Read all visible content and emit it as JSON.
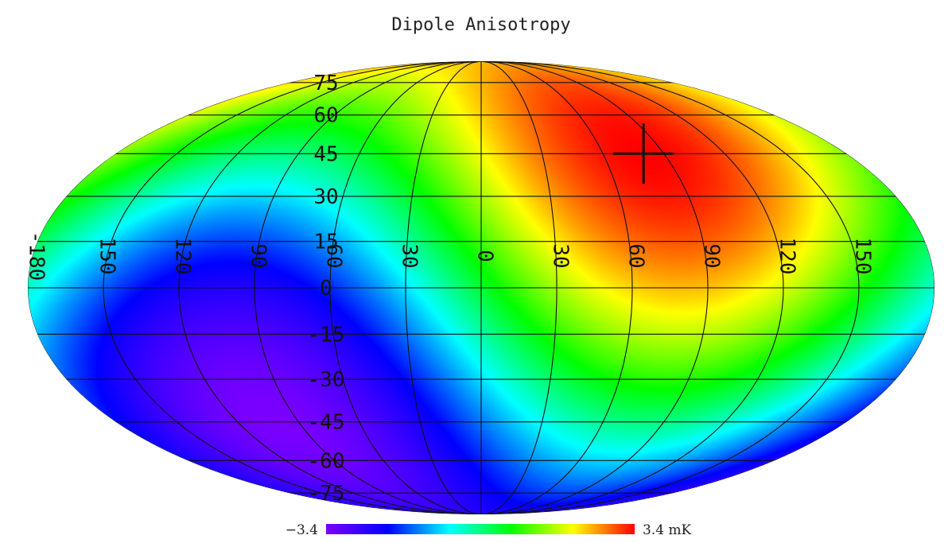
{
  "title": "Dipole Anisotropy",
  "map": {
    "projection": "mollweide",
    "dipole_pole": {
      "lon": 80,
      "lat": 45
    },
    "marker": {
      "lon": 80,
      "lat": 45,
      "symbol": "plus"
    },
    "color_scale": [
      "#7a00ff",
      "#0000ff",
      "#00ffff",
      "#00ff00",
      "#ffff00",
      "#ff0000"
    ],
    "longitude_labels": [
      "-180",
      "150",
      "120",
      "90",
      "60",
      "30",
      "0",
      "30",
      "60",
      "90",
      "120",
      "150"
    ],
    "latitude_labels": [
      "75",
      "60",
      "45",
      "30",
      "15",
      "0",
      "-15",
      "-30",
      "-45",
      "-60",
      "-75"
    ]
  },
  "colorbar": {
    "min_label": "−3.4",
    "max_label": "3.4 mK",
    "min_value": -3.4,
    "max_value": 3.4,
    "unit": "mK"
  }
}
